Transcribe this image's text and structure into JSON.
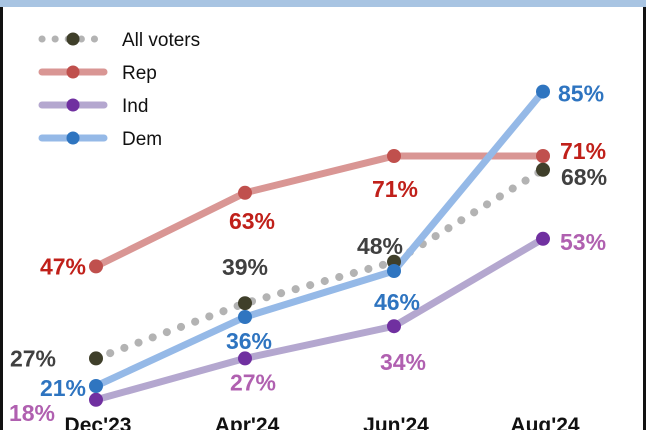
{
  "chart_data": {
    "type": "line",
    "categories": [
      "Dec'23",
      "Apr'24",
      "Jun'24",
      "Aug'24"
    ],
    "ylim": [
      0,
      100
    ],
    "grid": false,
    "legend_position": "top-left",
    "series": [
      {
        "name": "All voters",
        "values": [
          27,
          39,
          48,
          68
        ],
        "labels": [
          "27%",
          "39%",
          "48%",
          "68%"
        ],
        "color": "#b3b3b3",
        "marker_color": "#3f3f2a",
        "label_color": "#404040",
        "style": "dotted"
      },
      {
        "name": "Rep",
        "values": [
          47,
          63,
          71,
          71
        ],
        "labels": [
          "47%",
          "63%",
          "71%",
          "71%"
        ],
        "color": "#d99694",
        "marker_color": "#c0504d",
        "label_color": "#c0201a",
        "style": "solid"
      },
      {
        "name": "Ind",
        "values": [
          18,
          27,
          34,
          53
        ],
        "labels": [
          "18%",
          "27%",
          "34%",
          "53%"
        ],
        "color": "#b4a7cf",
        "marker_color": "#7030a0",
        "label_color": "#b060b0",
        "style": "solid"
      },
      {
        "name": "Dem",
        "values": [
          21,
          36,
          46,
          85
        ],
        "labels": [
          "21%",
          "36%",
          "46%",
          "85%"
        ],
        "color": "#95b9e7",
        "marker_color": "#2f75c0",
        "label_color": "#2e74c0",
        "style": "solid"
      }
    ]
  }
}
